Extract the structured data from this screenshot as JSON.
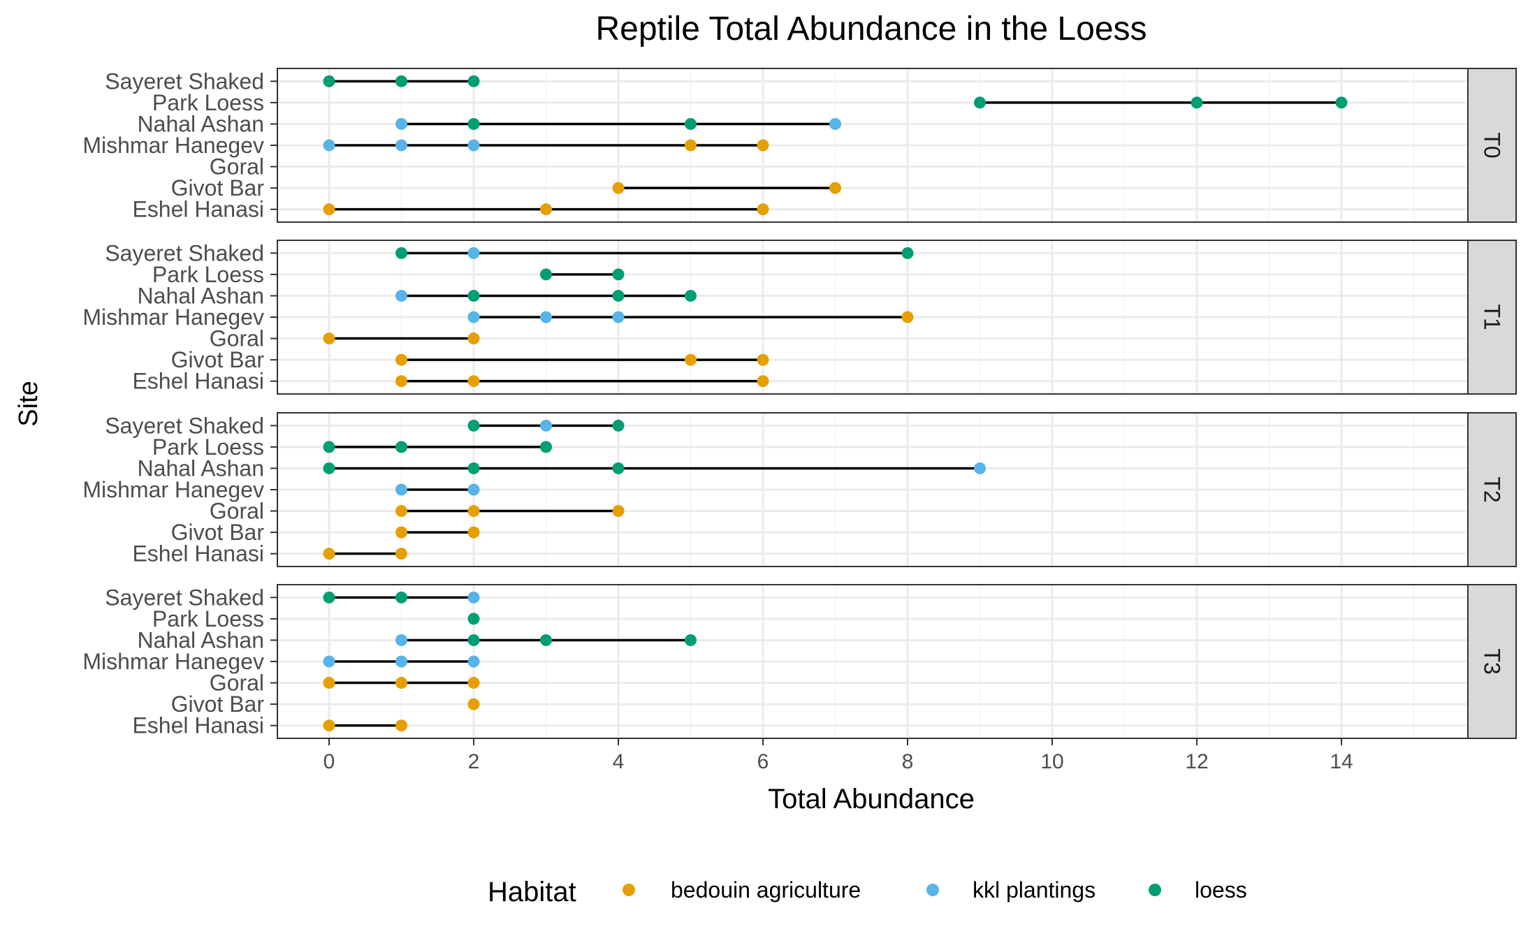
{
  "chart_data": {
    "type": "dumbbell-scatter",
    "title": "Reptile Total Abundance in the Loess",
    "xlabel": "Total Abundance",
    "ylabel": "Site",
    "xlim": [
      -0.72,
      15.7
    ],
    "xticks": [
      0,
      2,
      4,
      6,
      8,
      10,
      12,
      14
    ],
    "grid": true,
    "facet_strip_position": "right",
    "sites": [
      "Eshel Hanasi",
      "Givot Bar",
      "Goral",
      "Mishmar Hanegev",
      "Nahal Ashan",
      "Park Loess",
      "Sayeret Shaked"
    ],
    "legend": {
      "title": "Habitat",
      "position": "bottom",
      "entries": [
        {
          "label": "bedouin agriculture",
          "color": "#E69F00"
        },
        {
          "label": "kkl plantings",
          "color": "#56B4E9"
        },
        {
          "label": "loess",
          "color": "#009E73"
        }
      ]
    },
    "panels": [
      {
        "label": "T0",
        "points": [
          {
            "site": "Sayeret Shaked",
            "habitat": "loess",
            "values": [
              0,
              1,
              2
            ]
          },
          {
            "site": "Park Loess",
            "habitat": "loess",
            "values": [
              9,
              12,
              14
            ]
          },
          {
            "site": "Nahal Ashan",
            "habitat": "kkl plantings",
            "values": [
              1,
              7
            ]
          },
          {
            "site": "Nahal Ashan",
            "habitat": "loess",
            "values": [
              2,
              5
            ]
          },
          {
            "site": "Mishmar Hanegev",
            "habitat": "kkl plantings",
            "values": [
              0,
              1,
              2
            ]
          },
          {
            "site": "Mishmar Hanegev",
            "habitat": "bedouin agriculture",
            "values": [
              5,
              6
            ]
          },
          {
            "site": "Givot Bar",
            "habitat": "bedouin agriculture",
            "values": [
              4,
              7
            ]
          },
          {
            "site": "Eshel Hanasi",
            "habitat": "bedouin agriculture",
            "values": [
              0,
              3,
              6
            ]
          }
        ]
      },
      {
        "label": "T1",
        "points": [
          {
            "site": "Sayeret Shaked",
            "habitat": "loess",
            "values": [
              1,
              8
            ]
          },
          {
            "site": "Sayeret Shaked",
            "habitat": "kkl plantings",
            "values": [
              2
            ]
          },
          {
            "site": "Park Loess",
            "habitat": "loess",
            "values": [
              3,
              4
            ]
          },
          {
            "site": "Nahal Ashan",
            "habitat": "kkl plantings",
            "values": [
              1
            ]
          },
          {
            "site": "Nahal Ashan",
            "habitat": "loess",
            "values": [
              2,
              4,
              5
            ]
          },
          {
            "site": "Mishmar Hanegev",
            "habitat": "kkl plantings",
            "values": [
              2,
              3,
              4
            ]
          },
          {
            "site": "Mishmar Hanegev",
            "habitat": "bedouin agriculture",
            "values": [
              8
            ]
          },
          {
            "site": "Goral",
            "habitat": "bedouin agriculture",
            "values": [
              0,
              2
            ]
          },
          {
            "site": "Givot Bar",
            "habitat": "bedouin agriculture",
            "values": [
              1,
              5,
              6
            ]
          },
          {
            "site": "Eshel Hanasi",
            "habitat": "bedouin agriculture",
            "values": [
              1,
              2,
              6
            ]
          }
        ]
      },
      {
        "label": "T2",
        "points": [
          {
            "site": "Sayeret Shaked",
            "habitat": "loess",
            "values": [
              2,
              4
            ]
          },
          {
            "site": "Sayeret Shaked",
            "habitat": "kkl plantings",
            "values": [
              3
            ]
          },
          {
            "site": "Park Loess",
            "habitat": "loess",
            "values": [
              0,
              1,
              3
            ]
          },
          {
            "site": "Nahal Ashan",
            "habitat": "loess",
            "values": [
              0,
              2,
              4
            ]
          },
          {
            "site": "Nahal Ashan",
            "habitat": "kkl plantings",
            "values": [
              9
            ]
          },
          {
            "site": "Mishmar Hanegev",
            "habitat": "kkl plantings",
            "values": [
              1,
              2
            ]
          },
          {
            "site": "Goral",
            "habitat": "bedouin agriculture",
            "values": [
              1,
              2,
              4
            ]
          },
          {
            "site": "Givot Bar",
            "habitat": "bedouin agriculture",
            "values": [
              1,
              2
            ]
          },
          {
            "site": "Eshel Hanasi",
            "habitat": "bedouin agriculture",
            "values": [
              0,
              1
            ]
          }
        ]
      },
      {
        "label": "T3",
        "points": [
          {
            "site": "Sayeret Shaked",
            "habitat": "loess",
            "values": [
              0,
              1
            ]
          },
          {
            "site": "Sayeret Shaked",
            "habitat": "kkl plantings",
            "values": [
              2
            ]
          },
          {
            "site": "Park Loess",
            "habitat": "loess",
            "values": [
              2
            ]
          },
          {
            "site": "Nahal Ashan",
            "habitat": "kkl plantings",
            "values": [
              1
            ]
          },
          {
            "site": "Nahal Ashan",
            "habitat": "loess",
            "values": [
              2,
              3,
              5
            ]
          },
          {
            "site": "Mishmar Hanegev",
            "habitat": "kkl plantings",
            "values": [
              0,
              1,
              2
            ]
          },
          {
            "site": "Goral",
            "habitat": "bedouin agriculture",
            "values": [
              0,
              1,
              2
            ]
          },
          {
            "site": "Givot Bar",
            "habitat": "bedouin agriculture",
            "values": [
              2
            ]
          },
          {
            "site": "Eshel Hanasi",
            "habitat": "bedouin agriculture",
            "values": [
              0,
              1
            ]
          }
        ]
      }
    ]
  }
}
